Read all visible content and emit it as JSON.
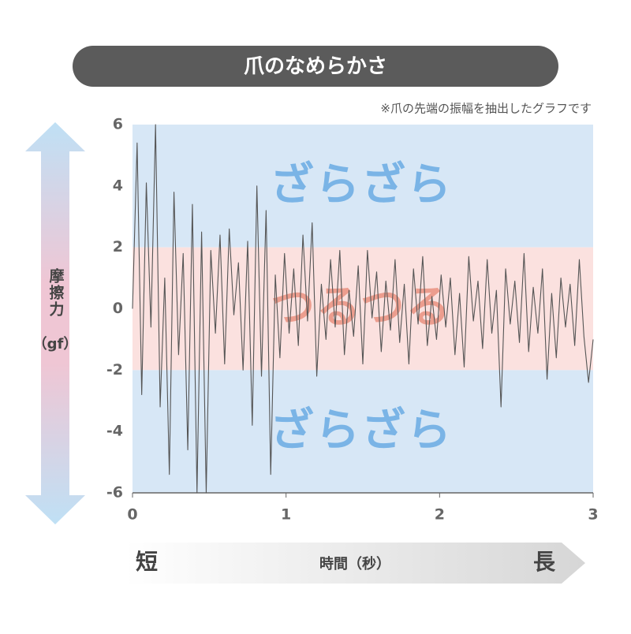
{
  "chart_data": {
    "type": "line",
    "title": "爪のなめらかさ",
    "note": "※爪の先端の振幅を抽出したグラフです",
    "y_label": "摩擦力",
    "y_unit": "（gf）",
    "x_label": "時間（秒）",
    "x_start": "短",
    "x_end": "長",
    "xlim": [
      0,
      3
    ],
    "ylim": [
      -6,
      6
    ],
    "xticks": [
      0,
      1,
      2,
      3
    ],
    "yticks": [
      -6,
      -4,
      -2,
      0,
      2,
      4,
      6
    ],
    "bands": [
      {
        "label": "ざらざら",
        "from": 2,
        "to": 6,
        "color": "#d7e7f6",
        "label_color": "#7ab4e6"
      },
      {
        "label": "つるつる",
        "from": -2,
        "to": 2,
        "color": "#fbe1df",
        "label_color": "#ec9d8e"
      },
      {
        "label": "ざらざら",
        "from": -6,
        "to": -2,
        "color": "#d7e7f6",
        "label_color": "#7ab4e6"
      }
    ],
    "series": [
      {
        "color": "#555555",
        "x": [
          0,
          0.03,
          0.06,
          0.09,
          0.12,
          0.15,
          0.18,
          0.21,
          0.24,
          0.27,
          0.3,
          0.33,
          0.36,
          0.39,
          0.42,
          0.45,
          0.48,
          0.51,
          0.54,
          0.57,
          0.6,
          0.63,
          0.66,
          0.69,
          0.72,
          0.75,
          0.78,
          0.81,
          0.84,
          0.87,
          0.9,
          0.93,
          0.96,
          0.99,
          1.02,
          1.05,
          1.08,
          1.11,
          1.14,
          1.17,
          1.2,
          1.23,
          1.26,
          1.29,
          1.32,
          1.35,
          1.38,
          1.41,
          1.44,
          1.47,
          1.5,
          1.53,
          1.56,
          1.59,
          1.62,
          1.65,
          1.68,
          1.71,
          1.74,
          1.77,
          1.8,
          1.83,
          1.86,
          1.89,
          1.92,
          1.95,
          1.98,
          2.01,
          2.04,
          2.07,
          2.1,
          2.13,
          2.16,
          2.19,
          2.22,
          2.25,
          2.28,
          2.31,
          2.34,
          2.37,
          2.4,
          2.43,
          2.46,
          2.49,
          2.52,
          2.55,
          2.58,
          2.61,
          2.64,
          2.67,
          2.7,
          2.73,
          2.76,
          2.79,
          2.82,
          2.85,
          2.88,
          2.91,
          2.94,
          2.97,
          3
        ],
        "values": [
          0,
          5.4,
          -2.8,
          4.1,
          -0.6,
          6.0,
          -3.2,
          1.0,
          -5.4,
          3.8,
          -1.5,
          1.8,
          -4.6,
          3.4,
          -6.0,
          2.5,
          -6.0,
          1.9,
          -0.8,
          2.4,
          -1.8,
          2.6,
          -0.2,
          1.5,
          -2.0,
          2.2,
          -3.8,
          4.0,
          -2.2,
          3.2,
          -5.4,
          1.1,
          -1.6,
          1.8,
          -0.8,
          1.3,
          -1.2,
          2.4,
          -0.4,
          2.8,
          -2.2,
          0.8,
          -1.0,
          1.6,
          -0.6,
          1.9,
          -1.5,
          0.6,
          -0.9,
          1.4,
          -1.8,
          1.9,
          -0.3,
          1.2,
          -1.4,
          0.9,
          -0.7,
          1.6,
          -1.1,
          0.8,
          -1.8,
          1.3,
          -0.5,
          1.7,
          -1.2,
          0.4,
          -1.0,
          1.1,
          -0.6,
          1.0,
          -1.5,
          0.5,
          -1.9,
          1.7,
          -0.4,
          0.9,
          -1.3,
          1.6,
          -0.8,
          0.6,
          -3.2,
          1.3,
          -0.5,
          0.9,
          -1.1,
          1.8,
          -1.4,
          0.7,
          -0.8,
          1.3,
          -2.3,
          0.5,
          -1.6,
          1.0,
          -0.6,
          0.8,
          -1.2,
          1.6,
          -0.9,
          -2.4,
          -1.0
        ]
      }
    ]
  }
}
